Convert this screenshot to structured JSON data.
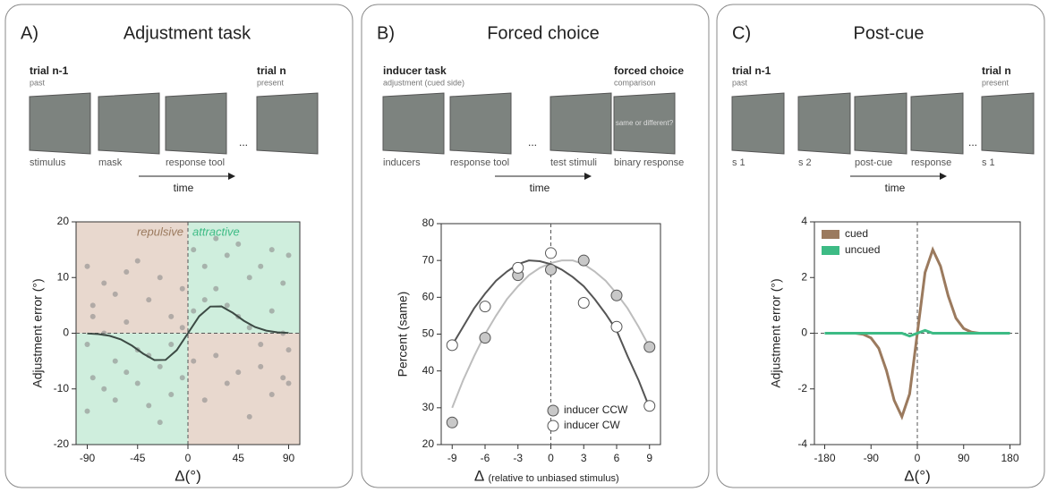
{
  "panels": [
    {
      "letter": "A)",
      "title": "Adjustment task",
      "left_head": "trial n-1",
      "left_sub": "past",
      "right_head": "trial n",
      "right_sub": "present",
      "captions": [
        "stimulus",
        "mask",
        "response tool",
        ""
      ],
      "ellipsis": "...",
      "time": "time"
    },
    {
      "letter": "B)",
      "title": "Forced choice",
      "left_head": "inducer task",
      "left_sub": "adjustment (cued side)",
      "right_head": "forced choice",
      "right_sub": "comparison",
      "captions": [
        "inducers",
        "response tool",
        "test stimuli",
        "binary response"
      ],
      "ellipsis": "...",
      "time": "time",
      "screen_text": "same or different?"
    },
    {
      "letter": "C)",
      "title": "Post-cue",
      "left_head": "trial n-1",
      "left_sub": "past",
      "right_head": "trial n",
      "right_sub": "present",
      "captions": [
        "s 1",
        "s 2",
        "post-cue",
        "response",
        "s 1"
      ],
      "ellipsis": "...",
      "time": "time"
    }
  ],
  "chart_data": [
    {
      "type": "scatter",
      "x_label": "Δ(°)",
      "y_label": "Adjustment error (°)",
      "annotations": [
        "repulsive",
        "attractive"
      ],
      "xlim": [
        -100,
        100
      ],
      "xticks": [
        -90,
        -45,
        0,
        45,
        90
      ],
      "ylim": [
        -20,
        20
      ],
      "yticks": [
        -20,
        -10,
        0,
        10,
        20
      ],
      "points": {
        "color": "#8c8c8c",
        "x": [
          -90,
          -90,
          -90,
          -85,
          -85,
          -85,
          -75,
          -75,
          -75,
          -65,
          -65,
          -65,
          -55,
          -55,
          -55,
          -45,
          -45,
          -45,
          -35,
          -35,
          -35,
          -25,
          -25,
          -25,
          -15,
          -15,
          -15,
          -5,
          -5,
          -5,
          5,
          5,
          5,
          15,
          15,
          15,
          25,
          25,
          25,
          35,
          35,
          35,
          45,
          45,
          45,
          55,
          55,
          55,
          65,
          65,
          65,
          75,
          75,
          75,
          85,
          85,
          85,
          90,
          90,
          90
        ],
        "y": [
          12,
          -2,
          -14,
          5,
          -8,
          3,
          9,
          -10,
          0,
          7,
          -5,
          -12,
          11,
          -7,
          2,
          13,
          -9,
          -3,
          6,
          -13,
          -4,
          10,
          -16,
          -6,
          3,
          -11,
          -2,
          8,
          -8,
          1,
          15,
          -5,
          4,
          12,
          -12,
          6,
          17,
          -4,
          8,
          14,
          -9,
          5,
          16,
          -7,
          3,
          10,
          -15,
          1,
          12,
          -6,
          -2,
          15,
          -11,
          4,
          9,
          -8,
          0,
          14,
          -3,
          -9
        ]
      },
      "curve": {
        "color": "#3c4a44",
        "x": [
          -90,
          -80,
          -70,
          -60,
          -50,
          -40,
          -30,
          -20,
          -10,
          0,
          10,
          20,
          30,
          40,
          50,
          60,
          70,
          80,
          90
        ],
        "values": [
          -0.05,
          -0.16,
          -0.46,
          -1.11,
          -2.23,
          -3.67,
          -4.82,
          -4.79,
          -3.04,
          0,
          3.04,
          4.79,
          4.82,
          3.67,
          2.23,
          1.11,
          0.46,
          0.16,
          0.05
        ]
      }
    },
    {
      "type": "scatter",
      "x_label": "Δ",
      "x_label_note": "(relative to unbiased stimulus)",
      "y_label": "Percent (same)",
      "xlim": [
        -10,
        10
      ],
      "xticks": [
        -9,
        -6,
        -3,
        0,
        3,
        6,
        9
      ],
      "ylim": [
        20,
        80
      ],
      "yticks": [
        20,
        30,
        40,
        50,
        60,
        70,
        80
      ],
      "series": [
        {
          "name": "inducer CCW",
          "color": "#c8c8c8",
          "x": [
            -9,
            -6,
            -3,
            0,
            3,
            6,
            9
          ],
          "values": [
            26,
            49,
            66,
            67.5,
            70,
            60.5,
            46.5
          ]
        },
        {
          "name": "inducer CW",
          "color": "#ffffff",
          "x": [
            -9,
            -6,
            -3,
            0,
            3,
            6,
            9
          ],
          "values": [
            47,
            57.5,
            68,
            72,
            58.5,
            52,
            30.5
          ]
        }
      ],
      "fit_x": [
        -9,
        -8,
        -7,
        -6,
        -5,
        -4,
        -3,
        -2,
        -1,
        0,
        1,
        2,
        3,
        4,
        5,
        6,
        7,
        8,
        9
      ],
      "fits": [
        {
          "color": "#bdbdbd",
          "values": [
            30,
            37.5,
            44,
            50,
            55,
            59.5,
            63,
            66,
            68,
            69.3,
            70,
            70,
            69,
            67,
            64.5,
            61,
            57,
            52,
            46.5
          ]
        },
        {
          "color": "#555555",
          "values": [
            47,
            52,
            57,
            61,
            64.5,
            67,
            69,
            70,
            69.8,
            69,
            67.5,
            65.5,
            63,
            59.5,
            55.5,
            51,
            44,
            37.5,
            30
          ]
        }
      ]
    },
    {
      "type": "line",
      "x_label": "Δ(°)",
      "y_label": "Adjustment error (°)",
      "xlim": [
        -200,
        200
      ],
      "xticks": [
        -180,
        -90,
        0,
        90,
        180
      ],
      "ylim": [
        -4,
        4
      ],
      "yticks": [
        -4,
        -2,
        0,
        2,
        4
      ],
      "x": [
        -180,
        -165,
        -150,
        -135,
        -120,
        -105,
        -90,
        -75,
        -60,
        -45,
        -30,
        -15,
        0,
        15,
        30,
        45,
        60,
        75,
        90,
        105,
        120,
        135,
        150,
        165,
        180
      ],
      "series": [
        {
          "name": "cued",
          "color": "#9b7a5e",
          "values": [
            0,
            0,
            0,
            0,
            0,
            -0.04,
            -0.17,
            -0.54,
            -1.34,
            -2.41,
            -3,
            -2.18,
            0,
            2.18,
            3,
            2.41,
            1.34,
            0.54,
            0.17,
            0.04,
            0,
            0,
            0,
            0,
            0
          ]
        },
        {
          "name": "uncued",
          "color": "#3dbb85",
          "values": [
            0,
            0,
            0,
            0,
            0,
            0,
            0,
            0,
            0,
            0,
            0,
            -0.1,
            0,
            0.1,
            0,
            0,
            0,
            0,
            0,
            0,
            0,
            0,
            0,
            0,
            0
          ]
        }
      ]
    }
  ]
}
